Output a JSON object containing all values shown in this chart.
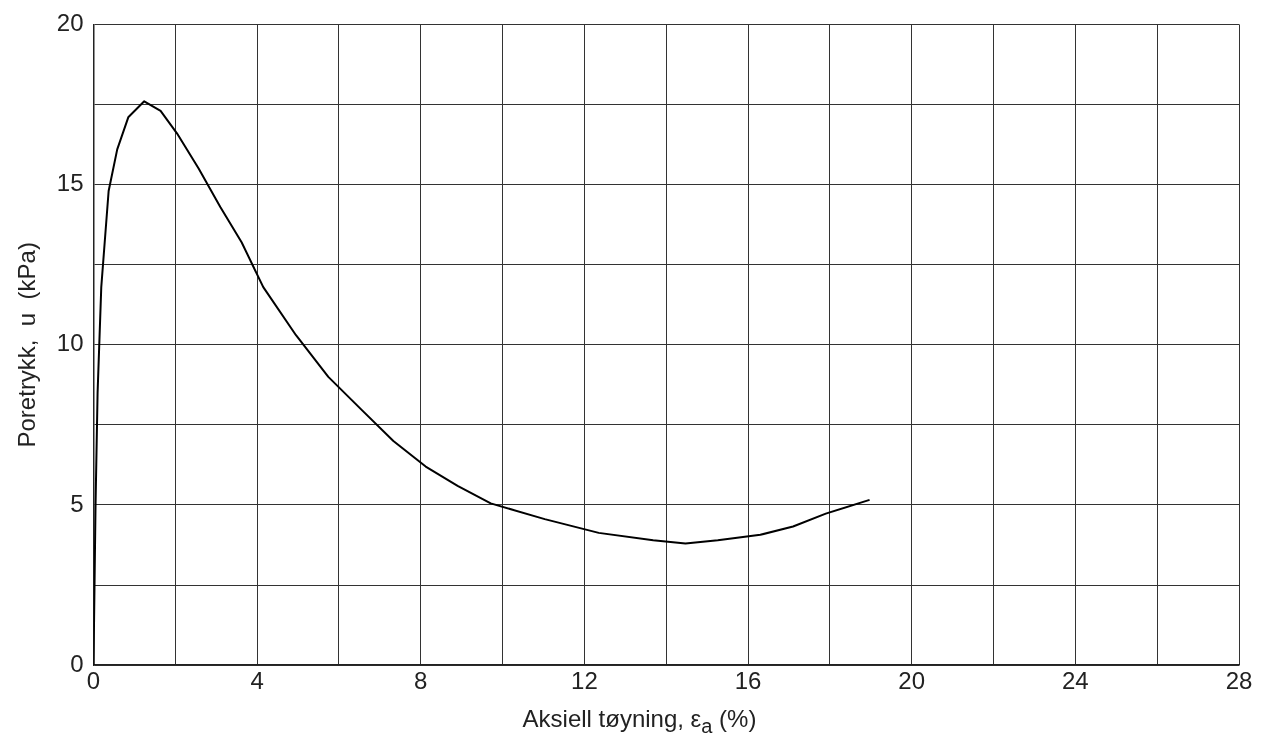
{
  "chart_data": {
    "type": "line",
    "xlabel": "Aksiell tøyning,  ε$_{a}$  (%)",
    "ylabel": "Poretrykk,  u  (kPa)",
    "xlim": [
      0,
      28
    ],
    "ylim": [
      0,
      20
    ],
    "xticks": [
      0,
      {
        "value": 2,
        "label": null
      },
      4,
      {
        "value": 6,
        "label": null
      },
      8,
      {
        "value": 10,
        "label": null
      },
      12,
      {
        "value": 14,
        "label": null
      },
      16,
      {
        "value": 18,
        "label": null
      },
      20,
      {
        "value": 22,
        "label": null
      },
      24,
      {
        "value": 26,
        "label": null
      },
      28
    ],
    "yticks": [
      0,
      {
        "value": 2.5,
        "label": null
      },
      5,
      {
        "value": 7.5,
        "label": null
      },
      10,
      {
        "value": 12.5,
        "label": null
      },
      15,
      {
        "value": 17.5,
        "label": null
      },
      20
    ],
    "grid": true,
    "legend": false,
    "marker": "none",
    "line_style": "solid",
    "series": [
      {
        "color": "#000000",
        "x": [
          0,
          0.05,
          0.1,
          0.19,
          0.37,
          0.58,
          0.85,
          1.24,
          1.64,
          2.04,
          2.57,
          3.1,
          3.62,
          4.15,
          4.95,
          5.74,
          6.53,
          7.33,
          8.12,
          8.9,
          9.71,
          11.03,
          12.35,
          13.68,
          14.47,
          15.26,
          16.3,
          17.1,
          17.9,
          18.97
        ],
        "values": [
          0,
          5,
          8.5,
          11.8,
          14.8,
          16.1,
          17.1,
          17.6,
          17.3,
          16.6,
          15.5,
          14.3,
          13.2,
          11.8,
          10.3,
          9.0,
          8.0,
          7.0,
          6.2,
          5.6,
          5.05,
          4.56,
          4.13,
          3.9,
          3.8,
          3.9,
          4.07,
          4.33,
          4.73,
          5.16
        ]
      }
    ]
  }
}
